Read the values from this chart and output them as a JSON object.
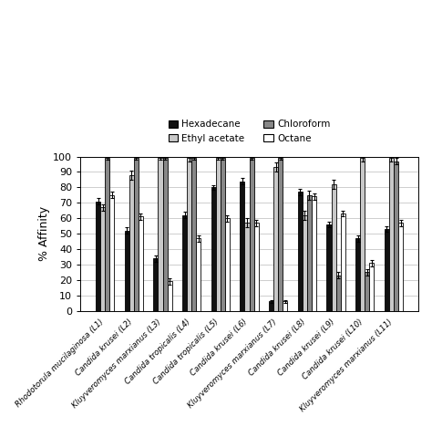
{
  "categories": [
    "Rhodotorula mucilaginosa (L1)",
    "Candida krusei (L2)",
    "Kluyveromyces marxianus (L3)",
    "Candida tropicalis (L4)",
    "Candida tropicalis (L5)",
    "Candida krusei (L6)",
    "Kluyveromyces marxianus (L7)",
    "Candida krusei (L8)",
    "Candida krusei (L9)",
    "Candida krusei (L10)",
    "Kluyveromyces marxianus (L11)"
  ],
  "hexadecane": [
    71,
    52,
    34,
    62,
    80,
    84,
    6,
    77,
    56,
    47,
    53
  ],
  "ethylacetate": [
    67,
    88,
    99,
    99,
    99,
    57,
    93,
    62,
    82,
    99,
    99
  ],
  "chloroform": [
    99,
    99,
    99,
    99,
    99,
    99,
    99,
    75,
    23,
    25,
    97
  ],
  "octane": [
    75,
    61,
    19,
    47,
    60,
    57,
    6,
    74,
    63,
    31,
    57
  ],
  "hexadecane_err": [
    2,
    2,
    2,
    2,
    1.5,
    2,
    1,
    2,
    2,
    2,
    2
  ],
  "ethylacetate_err": [
    2,
    3,
    1,
    2,
    1,
    3,
    3,
    3,
    3,
    2,
    2
  ],
  "chloroform_err": [
    1,
    1,
    1,
    1,
    1,
    1,
    1,
    3,
    2,
    2,
    2
  ],
  "octane_err": [
    2,
    2,
    2,
    2,
    2,
    2,
    1,
    2,
    2,
    2,
    2
  ],
  "bar_colors": {
    "hexadecane": "#111111",
    "ethylacetate": "#c8c8c8",
    "chloroform": "#888888",
    "octane": "#ffffff"
  },
  "ylabel": "% Affinity",
  "ylim": [
    0,
    100
  ],
  "yticks": [
    0,
    10,
    20,
    30,
    40,
    50,
    60,
    70,
    80,
    90,
    100
  ],
  "legend_labels": [
    "Hexadecane",
    "Ethyl acetate",
    "Chloroform",
    "Octane"
  ],
  "background_color": "#ffffff",
  "grid_color": "#bbbbbb"
}
